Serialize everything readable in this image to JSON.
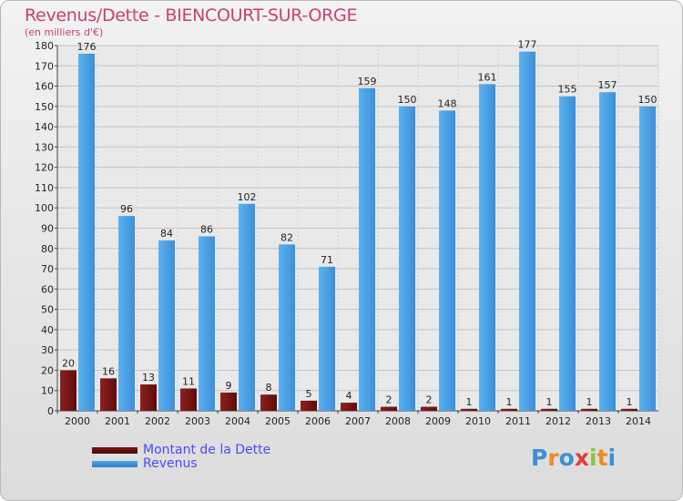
{
  "title": "Revenus/Dette - BIENCOURT-SUR-ORGE",
  "subtitle": "(en milliers d'€)",
  "chart_data": {
    "type": "bar",
    "title": "Revenus/Dette - BIENCOURT-SUR-ORGE",
    "ylabel": "(en milliers d'€)",
    "xlabel": "",
    "ylim": [
      0,
      180
    ],
    "yticks": [
      0,
      10,
      20,
      30,
      40,
      50,
      60,
      70,
      80,
      90,
      100,
      110,
      120,
      130,
      140,
      150,
      160,
      170,
      180
    ],
    "grid": true,
    "legend_position": "bottom-left",
    "categories": [
      "2000",
      "2001",
      "2002",
      "2003",
      "2004",
      "2005",
      "2006",
      "2007",
      "2008",
      "2009",
      "2010",
      "2011",
      "2012",
      "2013",
      "2014"
    ],
    "series": [
      {
        "name": "Montant de la Dette",
        "values": [
          20,
          16,
          13,
          11,
          9,
          8,
          5,
          4,
          2,
          2,
          1,
          1,
          1,
          1,
          1
        ]
      },
      {
        "name": "Revenus",
        "values": [
          176,
          96,
          84,
          86,
          102,
          82,
          71,
          159,
          150,
          148,
          161,
          177,
          155,
          157,
          150
        ]
      }
    ]
  },
  "colors": {
    "debt": "#7a1515",
    "revenue": "#4aa3e8"
  },
  "legend": {
    "debt_label": "Montant de la Dette",
    "revenue_label": "Revenus"
  },
  "logo": {
    "letters": [
      "P",
      "r",
      "o",
      "x",
      "i",
      "t",
      "i"
    ],
    "colors": [
      "#3a8fd8",
      "#f08a1c",
      "#3a8fd8",
      "#e83a3a",
      "#8cc63e",
      "#f08a1c",
      "#3a8fd8"
    ]
  }
}
